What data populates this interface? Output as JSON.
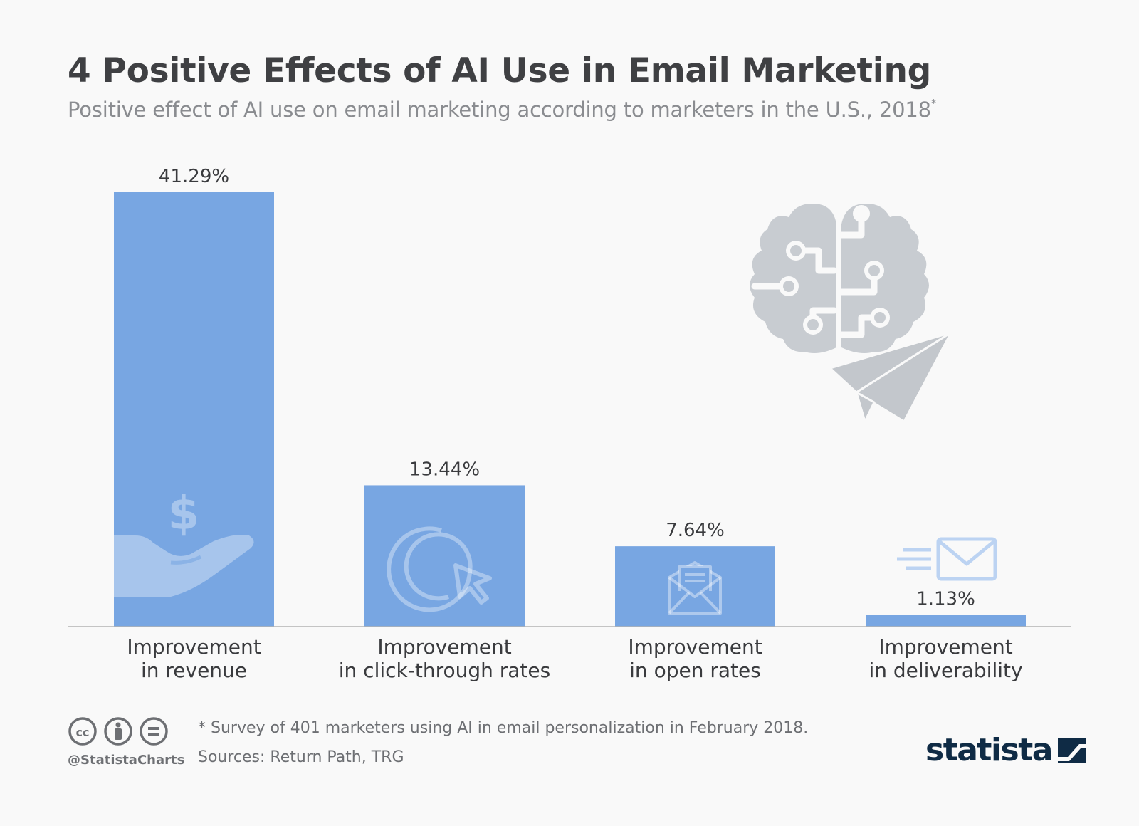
{
  "header": {
    "title": "4 Positive Effects of AI Use in Email Marketing",
    "subtitle": "Positive effect of AI use on email marketing according to marketers in the U.S., 2018",
    "subtitle_mark": "*"
  },
  "chart_data": {
    "type": "bar",
    "categories": [
      [
        "Improvement",
        "in revenue"
      ],
      [
        "Improvement",
        "in click-through rates"
      ],
      [
        "Improvement",
        "in open rates"
      ],
      [
        "Improvement",
        "in deliverability"
      ]
    ],
    "values": [
      41.29,
      13.44,
      7.64,
      1.13
    ],
    "value_labels": [
      "41.29%",
      "13.44%",
      "7.64%",
      "1.13%"
    ],
    "unit": "%",
    "ylim": [
      0,
      41.29
    ],
    "grid": false,
    "legend": "none",
    "bar_color": "#78a6e2",
    "bar_icons": [
      "dollar-hand-icon",
      "click-cursor-icon",
      "open-envelope-icon",
      "fast-mail-icon"
    ]
  },
  "illustration": {
    "icon": "brain-circuit-paper-plane-icon",
    "color": "#c8ccd1"
  },
  "footer": {
    "note": "* Survey of 401 marketers using AI in email personalization in February 2018.",
    "sources": "Sources: Return Path, TRG",
    "handle": "@StatistaCharts",
    "license_icons": [
      "cc-icon",
      "by-icon",
      "nd-icon"
    ],
    "brand": "statista"
  },
  "colors": {
    "title": "#3f4043",
    "subtitle": "#8a8c90",
    "bar": "#78a6e2",
    "brand": "#0f2b45"
  }
}
